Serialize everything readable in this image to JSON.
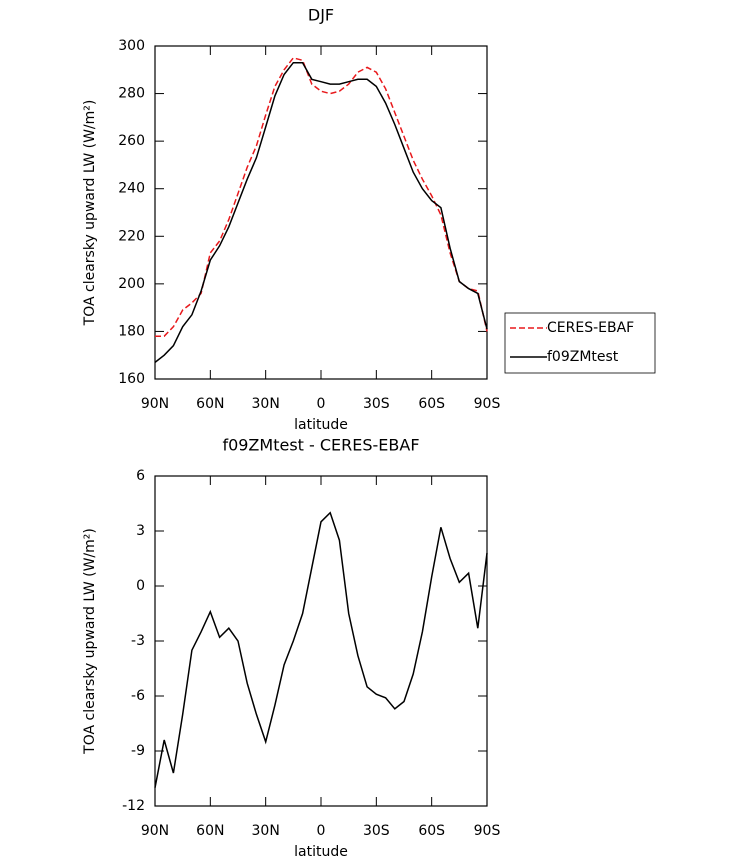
{
  "chart_data": [
    {
      "type": "line",
      "title": "DJF",
      "xlabel": "latitude",
      "ylabel": "TOA clearsky upward LW (W/m²)",
      "x": [
        90,
        85,
        80,
        75,
        70,
        65,
        60,
        55,
        50,
        45,
        40,
        35,
        30,
        25,
        20,
        15,
        10,
        5,
        0,
        -5,
        -10,
        -15,
        -20,
        -25,
        -30,
        -35,
        -40,
        -45,
        -50,
        -55,
        -60,
        -65,
        -70,
        -75,
        -80,
        -85,
        -90
      ],
      "xlim": [
        90,
        -90
      ],
      "xticks": [
        {
          "value": 90,
          "label": "90N"
        },
        {
          "value": 60,
          "label": "60N"
        },
        {
          "value": 30,
          "label": "30N"
        },
        0,
        {
          "value": -30,
          "label": "30S"
        },
        {
          "value": -60,
          "label": "60S"
        },
        {
          "value": -90,
          "label": "90S"
        }
      ],
      "ylim": [
        160,
        300
      ],
      "yticks": [
        160,
        180,
        200,
        220,
        240,
        260,
        280,
        300
      ],
      "series": [
        {
          "name": "CERES-EBAF",
          "color": "#e8191c",
          "dashed": true,
          "values": [
            178,
            178,
            182,
            189,
            192,
            196,
            213,
            218,
            227,
            238,
            249,
            258,
            271,
            283,
            290,
            295,
            294,
            284,
            281,
            280,
            281,
            284,
            289,
            291,
            289,
            282,
            272,
            262,
            252,
            244,
            237,
            229,
            213,
            201,
            198,
            197,
            180
          ]
        },
        {
          "name": "f09ZMtest",
          "color": "#000000",
          "dashed": false,
          "values": [
            167,
            170,
            174,
            182,
            187,
            197,
            210,
            216,
            224,
            234,
            244,
            253,
            266,
            279,
            288,
            293,
            293,
            286,
            285,
            284,
            284,
            285,
            286,
            286,
            283,
            276,
            267,
            257,
            247,
            240,
            235,
            232,
            215,
            201,
            198,
            196,
            181
          ]
        }
      ]
    },
    {
      "type": "line",
      "title": "f09ZMtest - CERES-EBAF",
      "xlabel": "latitude",
      "ylabel": "TOA clearsky upward LW (W/m²)",
      "x": [
        90,
        85,
        80,
        75,
        70,
        65,
        60,
        55,
        50,
        45,
        40,
        35,
        30,
        25,
        20,
        15,
        10,
        5,
        0,
        -5,
        -10,
        -15,
        -20,
        -25,
        -30,
        -35,
        -40,
        -45,
        -50,
        -55,
        -60,
        -65,
        -70,
        -75,
        -80,
        -85,
        -90
      ],
      "xlim": [
        90,
        -90
      ],
      "xticks": [
        {
          "value": 90,
          "label": "90N"
        },
        {
          "value": 60,
          "label": "60N"
        },
        {
          "value": 30,
          "label": "30N"
        },
        0,
        {
          "value": -30,
          "label": "30S"
        },
        {
          "value": -60,
          "label": "60S"
        },
        {
          "value": -90,
          "label": "90S"
        }
      ],
      "ylim": [
        -12,
        6
      ],
      "yticks": [
        -12,
        -9,
        -6,
        -3,
        0,
        3,
        6
      ],
      "series": [
        {
          "color": "#000000",
          "dashed": false,
          "values": [
            -11,
            -8.4,
            -10.2,
            -7,
            -3.5,
            -2.5,
            -1.4,
            -2.8,
            -2.3,
            -3,
            -5.3,
            -7,
            -8.5,
            -6.5,
            -4.3,
            -3,
            -1.5,
            1,
            3.5,
            4,
            2.5,
            -1.5,
            -3.8,
            -5.5,
            -5.9,
            -6.1,
            -6.7,
            -6.3,
            -4.8,
            -2.5,
            0.5,
            3.2,
            1.5,
            0.2,
            0.7,
            -2.3,
            1.8
          ]
        }
      ]
    }
  ]
}
